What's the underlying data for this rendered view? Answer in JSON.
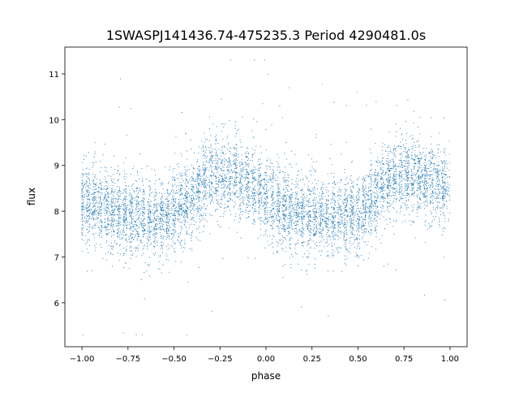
{
  "chart_data": {
    "type": "scatter",
    "title": "1SWASPJ141436.74-475235.3 Period 4290481.0s",
    "xlabel": "phase",
    "ylabel": "flux",
    "xlim": [
      -1.093,
      1.093
    ],
    "ylim": [
      5.04,
      11.585
    ],
    "xticks": [
      -1.0,
      -0.75,
      -0.5,
      -0.25,
      0.0,
      0.25,
      0.5,
      0.75,
      1.0
    ],
    "xtick_labels": [
      "−1.00",
      "−0.75",
      "−0.50",
      "−0.25",
      "0.00",
      "0.25",
      "0.50",
      "0.75",
      "1.00"
    ],
    "yticks": [
      6,
      7,
      8,
      9,
      10,
      11
    ],
    "ytick_labels": [
      "6",
      "7",
      "8",
      "9",
      "10",
      "11"
    ],
    "grid": false,
    "marker_color": "#1f77b4",
    "series": [
      {
        "name": "flux",
        "note": "approximate folded light curve: mean flux vs phase, points scattered around it",
        "mean_curve": {
          "phase": [
            -1.0,
            -0.9,
            -0.8,
            -0.7,
            -0.6,
            -0.5,
            -0.4,
            -0.3,
            -0.2,
            -0.1,
            0.0,
            0.1,
            0.2,
            0.3,
            0.4,
            0.5,
            0.6,
            0.7,
            0.8,
            0.9,
            1.0
          ],
          "flux": [
            8.25,
            8.1,
            8.0,
            7.9,
            7.85,
            7.95,
            8.3,
            8.8,
            8.8,
            8.65,
            8.35,
            8.05,
            8.0,
            7.9,
            7.85,
            7.95,
            8.3,
            8.8,
            8.8,
            8.6,
            8.45
          ]
        },
        "scatter_std": 0.42,
        "n_points": 7000
      }
    ]
  }
}
